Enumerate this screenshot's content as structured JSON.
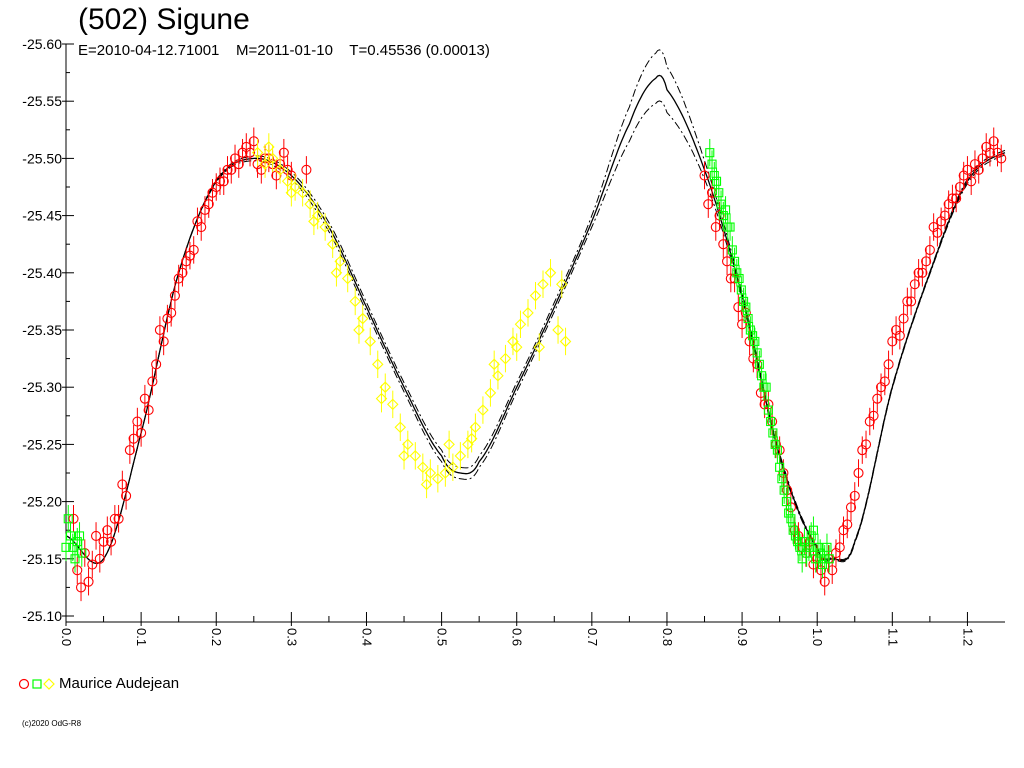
{
  "header": {
    "title": "(502) Sigune",
    "subtitle": "E=2010-04-12.71001    M=2011-01-10    T=0.45536 (0.00013)"
  },
  "legend": {
    "label": "Maurice Audejean",
    "markers": [
      "circle",
      "square",
      "diamond"
    ]
  },
  "footer": {
    "copyright": "(c)2020 OdG-R8"
  },
  "chart_data": {
    "type": "scatter",
    "title": "(502) Sigune",
    "xlabel": "",
    "ylabel": "",
    "xlim": [
      0.0,
      1.25
    ],
    "ylim": [
      -25.6,
      -25.1
    ],
    "y_inverted": true,
    "grid": false,
    "x_ticks": [
      "0.0",
      "0.1",
      "0.2",
      "0.3",
      "0.4",
      "0.5",
      "0.6",
      "0.7",
      "0.8",
      "0.9",
      "1.0",
      "1.1",
      "1.2"
    ],
    "y_ticks": [
      "-25.60",
      "-25.55",
      "-25.50",
      "-25.45",
      "-25.40",
      "-25.35",
      "-25.30",
      "-25.25",
      "-25.20",
      "-25.15",
      "-25.10"
    ],
    "fit_curve": {
      "x": [
        0.0,
        0.05,
        0.1,
        0.15,
        0.2,
        0.25,
        0.3,
        0.35,
        0.4,
        0.45,
        0.5,
        0.525,
        0.55,
        0.6,
        0.65,
        0.7,
        0.75,
        0.785,
        0.8,
        0.85,
        0.9,
        0.95,
        1.0,
        1.02,
        1.05,
        1.1,
        1.15,
        1.2,
        1.25
      ],
      "y": [
        -25.17,
        -25.15,
        -25.26,
        -25.4,
        -25.48,
        -25.5,
        -25.485,
        -25.44,
        -25.37,
        -25.3,
        -25.24,
        -25.225,
        -25.235,
        -25.3,
        -25.37,
        -25.445,
        -25.53,
        -25.57,
        -25.56,
        -25.49,
        -25.38,
        -25.24,
        -25.16,
        -25.15,
        -25.165,
        -25.3,
        -25.4,
        -25.48,
        -25.505
      ],
      "envelope_offset": [
        0.0,
        0.0,
        0.0,
        0.0,
        0.001,
        0.002,
        0.003,
        0.004,
        0.004,
        0.004,
        0.005,
        0.005,
        0.005,
        0.004,
        0.004,
        0.005,
        0.015,
        0.022,
        0.02,
        0.008,
        0.003,
        0.002,
        0.001,
        0.001,
        0.001,
        0.001,
        0.001,
        0.002,
        0.002
      ]
    },
    "series": [
      {
        "marker": "circle",
        "color": "#ff0000",
        "x": [
          0.01,
          0.015,
          0.02,
          0.025,
          0.03,
          0.035,
          0.04,
          0.045,
          0.05,
          0.055,
          0.06,
          0.065,
          0.07,
          0.075,
          0.08,
          0.085,
          0.09,
          0.095,
          0.1,
          0.105,
          0.11,
          0.115,
          0.12,
          0.125,
          0.13,
          0.135,
          0.14,
          0.145,
          0.15,
          0.155,
          0.16,
          0.165,
          0.17,
          0.175,
          0.18,
          0.185,
          0.19,
          0.195,
          0.2,
          0.205,
          0.21,
          0.215,
          0.22,
          0.225,
          0.23,
          0.235,
          0.24,
          0.245,
          0.25,
          0.255,
          0.26,
          0.265,
          0.27,
          0.275,
          0.28,
          0.285,
          0.29,
          0.295,
          0.3,
          0.32,
          0.85,
          0.855,
          0.86,
          0.865,
          0.87,
          0.875,
          0.88,
          0.885,
          0.89,
          0.895,
          0.9,
          0.905,
          0.91,
          0.915,
          0.92,
          0.925,
          0.93,
          0.935,
          0.94,
          0.945,
          0.95,
          0.955,
          0.96,
          0.965,
          0.97,
          0.975,
          0.98,
          0.985,
          0.99,
          0.995,
          1.0,
          1.005,
          1.01,
          1.015,
          1.02,
          1.025,
          1.03,
          1.035,
          1.04,
          1.045,
          1.05,
          1.055,
          1.06,
          1.065,
          1.07,
          1.075,
          1.08,
          1.085,
          1.09,
          1.095,
          1.1,
          1.105,
          1.11,
          1.115,
          1.12,
          1.125,
          1.13,
          1.135,
          1.14,
          1.145,
          1.15,
          1.155,
          1.16,
          1.165,
          1.17,
          1.175,
          1.18,
          1.185,
          1.19,
          1.195,
          1.2,
          1.205,
          1.21,
          1.215,
          1.22,
          1.225,
          1.23,
          1.235,
          1.24,
          1.245
        ],
        "y": [
          -25.185,
          -25.14,
          -25.125,
          -25.155,
          -25.13,
          -25.145,
          -25.17,
          -25.15,
          -25.165,
          -25.175,
          -25.165,
          -25.185,
          -25.185,
          -25.215,
          -25.205,
          -25.245,
          -25.255,
          -25.27,
          -25.26,
          -25.29,
          -25.28,
          -25.305,
          -25.32,
          -25.35,
          -25.34,
          -25.36,
          -25.365,
          -25.38,
          -25.395,
          -25.4,
          -25.41,
          -25.415,
          -25.42,
          -25.445,
          -25.44,
          -25.455,
          -25.46,
          -25.47,
          -25.475,
          -25.48,
          -25.48,
          -25.49,
          -25.49,
          -25.5,
          -25.495,
          -25.505,
          -25.51,
          -25.505,
          -25.515,
          -25.495,
          -25.49,
          -25.5,
          -25.5,
          -25.495,
          -25.485,
          -25.495,
          -25.505,
          -25.49,
          -25.485,
          -25.49,
          -25.485,
          -25.46,
          -25.47,
          -25.44,
          -25.45,
          -25.425,
          -25.41,
          -25.395,
          -25.395,
          -25.37,
          -25.355,
          -25.365,
          -25.34,
          -25.325,
          -25.32,
          -25.295,
          -25.285,
          -25.285,
          -25.27,
          -25.25,
          -25.245,
          -25.225,
          -25.21,
          -25.195,
          -25.175,
          -25.17,
          -25.16,
          -25.155,
          -25.165,
          -25.145,
          -25.15,
          -25.14,
          -25.13,
          -25.15,
          -25.14,
          -25.155,
          -25.16,
          -25.175,
          -25.18,
          -25.195,
          -25.205,
          -25.225,
          -25.245,
          -25.25,
          -25.27,
          -25.275,
          -25.29,
          -25.3,
          -25.305,
          -25.32,
          -25.34,
          -25.35,
          -25.345,
          -25.36,
          -25.375,
          -25.375,
          -25.39,
          -25.4,
          -25.4,
          -25.41,
          -25.42,
          -25.44,
          -25.435,
          -25.445,
          -25.45,
          -25.46,
          -25.465,
          -25.465,
          -25.475,
          -25.485,
          -25.49,
          -25.48,
          -25.495,
          -25.49,
          -25.5,
          -25.51,
          -25.505,
          -25.515,
          -25.505,
          -25.5
        ]
      },
      {
        "marker": "square",
        "color": "#00ff00",
        "x": [
          0.0,
          0.003,
          0.006,
          0.009,
          0.012,
          0.015,
          0.018,
          0.021,
          0.857,
          0.86,
          0.863,
          0.866,
          0.869,
          0.872,
          0.875,
          0.878,
          0.881,
          0.884,
          0.887,
          0.89,
          0.893,
          0.896,
          0.899,
          0.902,
          0.905,
          0.908,
          0.911,
          0.914,
          0.917,
          0.92,
          0.923,
          0.926,
          0.929,
          0.932,
          0.935,
          0.938,
          0.941,
          0.944,
          0.947,
          0.95,
          0.953,
          0.956,
          0.959,
          0.962,
          0.965,
          0.968,
          0.971,
          0.974,
          0.977,
          0.98,
          0.983,
          0.986,
          0.989,
          0.992,
          0.995,
          0.998,
          1.001,
          1.004,
          1.007,
          1.01,
          1.013,
          1.016
        ],
        "y": [
          -25.16,
          -25.185,
          -25.17,
          -25.16,
          -25.15,
          -25.165,
          -25.17,
          -25.155,
          -25.505,
          -25.495,
          -25.485,
          -25.48,
          -25.47,
          -25.46,
          -25.45,
          -25.455,
          -25.44,
          -25.44,
          -25.42,
          -25.41,
          -25.4,
          -25.395,
          -25.385,
          -25.375,
          -25.37,
          -25.36,
          -25.35,
          -25.345,
          -25.34,
          -25.33,
          -25.32,
          -25.31,
          -25.3,
          -25.3,
          -25.28,
          -25.27,
          -25.26,
          -25.25,
          -25.245,
          -25.23,
          -25.22,
          -25.21,
          -25.2,
          -25.19,
          -25.185,
          -25.175,
          -25.17,
          -25.165,
          -25.16,
          -25.15,
          -25.165,
          -25.155,
          -25.16,
          -25.17,
          -25.175,
          -25.15,
          -25.16,
          -25.155,
          -25.145,
          -25.15,
          -25.16,
          -25.15
        ]
      },
      {
        "marker": "diamond",
        "color": "#ffff00",
        "x": [
          0.255,
          0.265,
          0.275,
          0.285,
          0.295,
          0.305,
          0.315,
          0.325,
          0.335,
          0.345,
          0.355,
          0.365,
          0.375,
          0.385,
          0.395,
          0.405,
          0.415,
          0.425,
          0.435,
          0.445,
          0.455,
          0.465,
          0.475,
          0.485,
          0.495,
          0.505,
          0.515,
          0.525,
          0.535,
          0.545,
          0.555,
          0.565,
          0.575,
          0.585,
          0.595,
          0.605,
          0.615,
          0.625,
          0.635,
          0.645,
          0.655,
          0.665,
          0.27,
          0.3,
          0.33,
          0.36,
          0.39,
          0.42,
          0.45,
          0.48,
          0.51,
          0.54,
          0.57,
          0.6,
          0.63,
          0.66
        ],
        "y": [
          -25.505,
          -25.495,
          -25.5,
          -25.49,
          -25.48,
          -25.475,
          -25.47,
          -25.46,
          -25.45,
          -25.44,
          -25.425,
          -25.41,
          -25.395,
          -25.375,
          -25.36,
          -25.34,
          -25.32,
          -25.3,
          -25.285,
          -25.265,
          -25.25,
          -25.24,
          -25.23,
          -25.225,
          -25.22,
          -25.225,
          -25.23,
          -25.24,
          -25.25,
          -25.265,
          -25.28,
          -25.295,
          -25.31,
          -25.325,
          -25.34,
          -25.355,
          -25.365,
          -25.38,
          -25.39,
          -25.4,
          -25.35,
          -25.34,
          -25.51,
          -25.47,
          -25.445,
          -25.4,
          -25.35,
          -25.29,
          -25.24,
          -25.215,
          -25.25,
          -25.255,
          -25.32,
          -25.335,
          -25.335,
          -25.39
        ]
      }
    ]
  }
}
